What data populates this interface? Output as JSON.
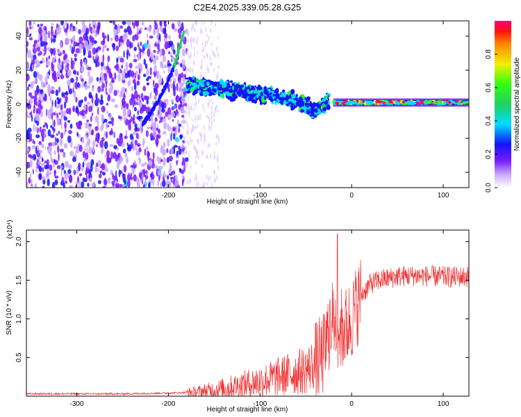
{
  "title": "C2E4.2025.339.05.28.G25",
  "chart_data": [
    {
      "type": "heatmap",
      "title": "C2E4.2025.339.05.28.G25",
      "xlabel": "Height of straight line (km)",
      "ylabel": "Frequency (Hz)",
      "xlim": [
        -355,
        128
      ],
      "ylim": [
        -49,
        49
      ],
      "x_ticks": [
        -300,
        -200,
        -100,
        0,
        100
      ],
      "y_ticks": [
        -40,
        -20,
        0,
        20,
        40
      ],
      "colorbar": {
        "label": "Normalized spectral amplitude",
        "range": [
          0,
          1
        ],
        "ticks": [
          0.0,
          0.2,
          0.4,
          0.6,
          0.8
        ],
        "tick_labels": [
          "0.0",
          "0.2",
          "0.4",
          "0.6",
          "0.8"
        ]
      },
      "features": [
        {
          "name": "noise-region",
          "x_range": [
            -355,
            -180
          ],
          "amplitude": [
            0.05,
            0.25
          ]
        },
        {
          "name": "carrier-streak",
          "x": [
            -228,
            -210,
            -195,
            -188,
            -183
          ],
          "y": [
            -12,
            3,
            20,
            33,
            42
          ],
          "amplitude": 0.6
        },
        {
          "name": "decaying-band",
          "x": [
            -180,
            -140,
            -100,
            -60,
            -40,
            -25
          ],
          "y": [
            12,
            9,
            6,
            2,
            -4,
            2
          ],
          "amplitude": 0.5
        },
        {
          "name": "stable-band",
          "x_range": [
            -20,
            128
          ],
          "y": 1,
          "amplitude": 0.9
        }
      ]
    },
    {
      "type": "line",
      "title": "",
      "xlabel": "Height of straight line (km)",
      "ylabel": "SNR (10 * v/v)",
      "y_multiplier": "(x10⁴)",
      "xlim": [
        -355,
        128
      ],
      "ylim": [
        0,
        2.15
      ],
      "x_ticks": [
        -300,
        -200,
        -100,
        0,
        100
      ],
      "y_ticks": [
        0.5,
        1.0,
        1.5,
        2.0
      ],
      "y_tick_labels": [
        "0.5",
        "1.0",
        "1.5",
        "2.0"
      ],
      "series": [
        {
          "name": "SNR",
          "color": "#ee3333",
          "x": [
            -355,
            -300,
            -250,
            -200,
            -170,
            -150,
            -130,
            -110,
            -90,
            -70,
            -50,
            -40,
            -30,
            -25,
            -20,
            -15,
            -10,
            -5,
            0,
            10,
            20,
            30,
            50,
            70,
            90,
            110,
            128
          ],
          "y": [
            0.03,
            0.03,
            0.03,
            0.04,
            0.05,
            0.08,
            0.12,
            0.17,
            0.22,
            0.28,
            0.34,
            0.42,
            0.55,
            0.85,
            1.0,
            0.9,
            0.85,
            0.9,
            1.0,
            1.3,
            1.45,
            1.5,
            1.55,
            1.56,
            1.55,
            1.54,
            1.55
          ]
        }
      ]
    }
  ]
}
